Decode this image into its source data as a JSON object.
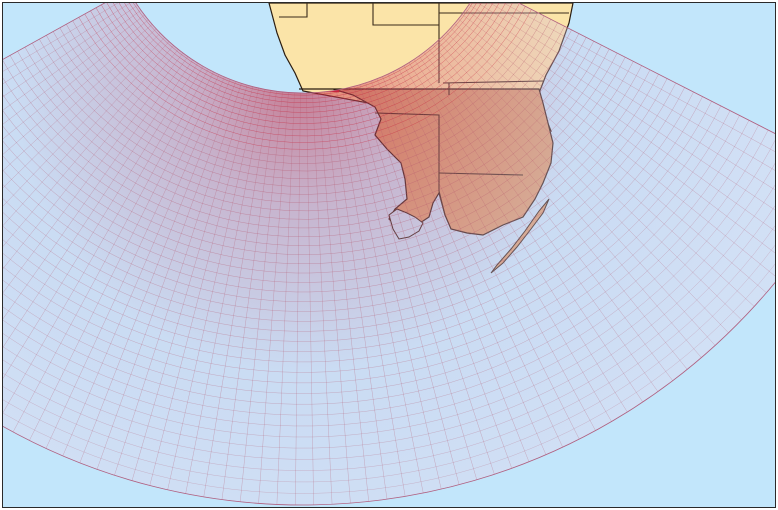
{
  "map": {
    "colors": {
      "water": "#c2e6fb",
      "land": "#fbe4a8",
      "land_under_mesh": "#d6a070",
      "coastline": "#2a1c10",
      "state_boundary": "#3a2a1a",
      "mesh_line": "#b5566e",
      "mesh_dense": "#c8243c",
      "mesh_sparse": "#d8c8e4",
      "frame": "#2a2a2a"
    },
    "layers": [
      "water",
      "land",
      "county-boundaries",
      "model-grid-mesh"
    ],
    "mesh": {
      "type": "radial-fan",
      "radial_rings": 48,
      "angular_spokes": 72
    }
  }
}
